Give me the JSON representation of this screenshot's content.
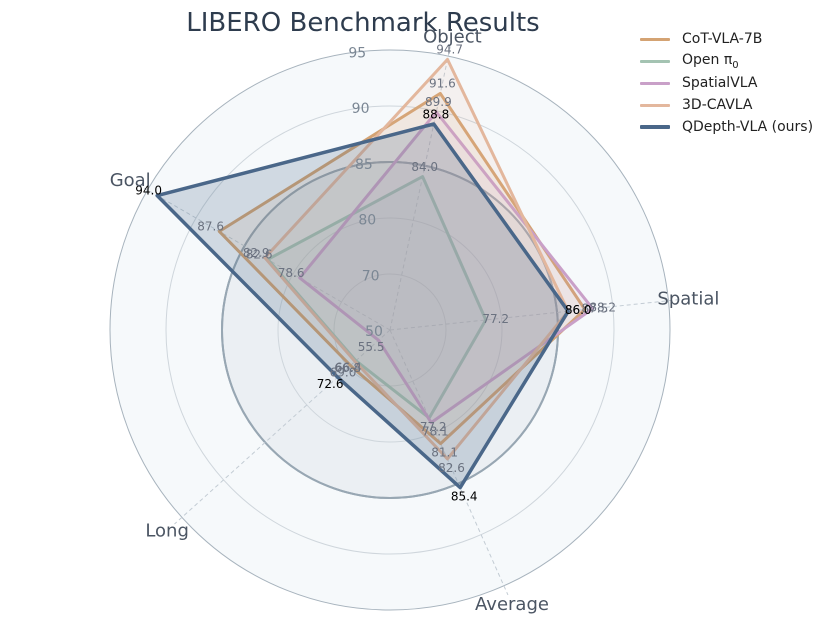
{
  "chart_data": {
    "type": "radar",
    "title": "LIBERO Benchmark Results",
    "axes": [
      "Object",
      "Spatial",
      "Average",
      "Long",
      "Goal"
    ],
    "ring_values": [
      50,
      70,
      80,
      85,
      90,
      95
    ],
    "series": [
      {
        "name": "CoT-VLA-7B",
        "values": [
          91.6,
          87.5,
          81.1,
          69.0,
          87.6
        ],
        "color": "#d4a373"
      },
      {
        "name": "Open π0",
        "name_base": "Open π",
        "name_sub": "0",
        "values": [
          84.0,
          77.2,
          77.2,
          66.4,
          82.6
        ],
        "color": "#a4c3b2"
      },
      {
        "name": "SpatialVLA",
        "values": [
          89.9,
          88.2,
          78.1,
          55.5,
          78.6
        ],
        "color": "#c9a0c8"
      },
      {
        "name": "3D-CAVLA",
        "values": [
          94.7,
          86.0,
          82.6,
          66.8,
          82.9
        ],
        "color": "#e3b79d"
      },
      {
        "name": "QDepth-VLA (ours)",
        "values": [
          88.8,
          86.0,
          85.4,
          72.6,
          94.0
        ],
        "color": "#4a6789"
      }
    ],
    "legend_position": "top-right"
  }
}
